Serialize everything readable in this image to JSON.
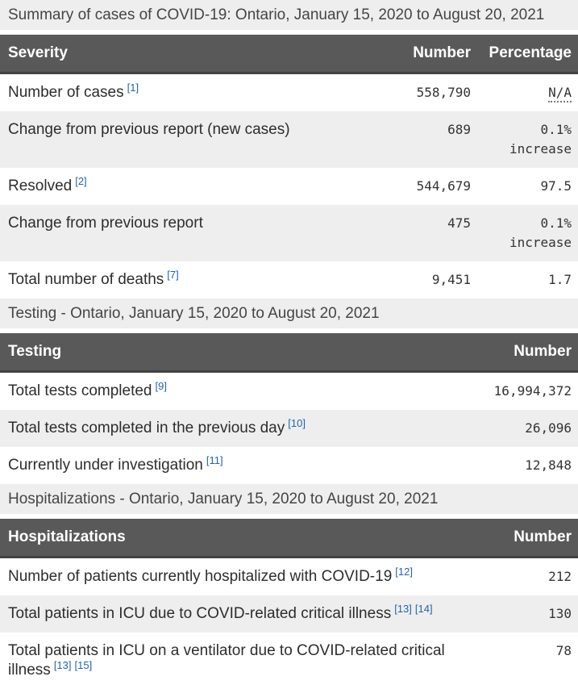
{
  "summary": {
    "caption": "Summary of cases of COVID-19: Ontario, January 15, 2020 to August 20, 2021",
    "headers": {
      "severity": "Severity",
      "number": "Number",
      "percentage": "Percentage"
    },
    "rows": [
      {
        "label": "Number of cases",
        "fn1": "[1]",
        "number": "558,790",
        "pct": "N/A"
      },
      {
        "label": "Change from previous report (new cases)",
        "number": "689",
        "pct": "0.1%",
        "pct_note": "increase"
      },
      {
        "label": "Resolved",
        "fn1": "[2]",
        "number": "544,679",
        "pct": "97.5"
      },
      {
        "label": "Change from previous report",
        "number": "475",
        "pct": "0.1%",
        "pct_note": "increase"
      },
      {
        "label": "Total number of deaths",
        "fn1": "[7]",
        "number": "9,451",
        "pct": "1.7"
      }
    ]
  },
  "testing": {
    "caption": "Testing - Ontario, January 15, 2020 to August 20, 2021",
    "headers": {
      "testing": "Testing",
      "number": "Number"
    },
    "rows": [
      {
        "label": "Total tests completed",
        "fn1": "[9]",
        "number": "16,994,372"
      },
      {
        "label": "Total tests completed in the previous day",
        "fn1": "[10]",
        "number": "26,096"
      },
      {
        "label": "Currently under investigation",
        "fn1": "[11]",
        "number": "12,848"
      }
    ]
  },
  "hospitalizations": {
    "caption": "Hospitalizations - Ontario, January 15, 2020 to August 20, 2021",
    "headers": {
      "hospitalizations": "Hospitalizations",
      "number": "Number"
    },
    "rows": [
      {
        "label": "Number of patients currently hospitalized with COVID-19",
        "fn1": "[12]",
        "number": "212"
      },
      {
        "label": "Total patients in ICU due to COVID-related critical illness",
        "fn1": "[13]",
        "fn2": "[14]",
        "number": "130"
      },
      {
        "label": "Total patients in ICU on a ventilator due to COVID-related critical illness",
        "fn1": "[13]",
        "fn2": "[15]",
        "number": "78"
      }
    ]
  },
  "colors": {
    "header_bg": "#595959",
    "header_text": "#ffffff",
    "stripe_bg": "#eeeeee",
    "caption_bg": "#eeeeee",
    "link_blue": "#2563a8",
    "body_text": "#2d2d2d"
  }
}
